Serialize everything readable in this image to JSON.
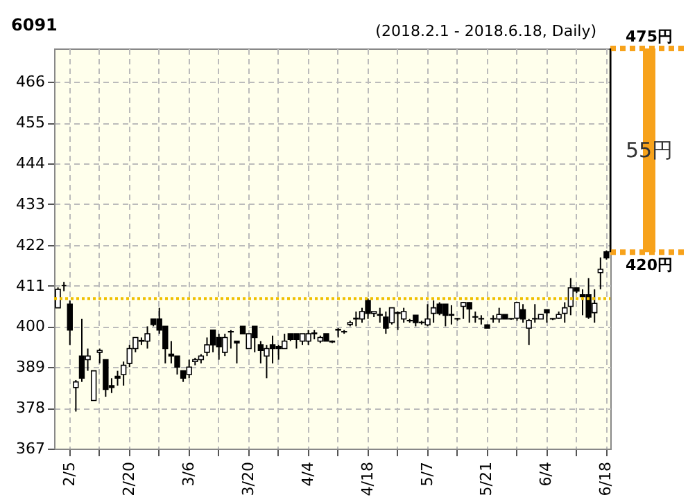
{
  "chart_data": {
    "type": "candlestick",
    "title": "6091",
    "subtitle": "(2018.2.1 - 2018.6.18, Daily)",
    "categories": [
      null,
      null,
      "2/5",
      null,
      null,
      null,
      null,
      null,
      null,
      null,
      null,
      null,
      "2/20",
      null,
      null,
      null,
      null,
      null,
      null,
      null,
      null,
      null,
      "3/6",
      null,
      null,
      null,
      null,
      null,
      null,
      null,
      null,
      null,
      "3/20",
      null,
      null,
      null,
      null,
      null,
      null,
      null,
      null,
      null,
      "4/4",
      null,
      null,
      null,
      null,
      null,
      null,
      null,
      null,
      null,
      "4/18",
      null,
      null,
      null,
      null,
      null,
      null,
      null,
      null,
      null,
      "5/7",
      null,
      null,
      null,
      null,
      null,
      null,
      null,
      null,
      null,
      "5/21",
      null,
      null,
      null,
      null,
      null,
      null,
      null,
      null,
      null,
      "6/4",
      null,
      null,
      null,
      null,
      null,
      null,
      null,
      null,
      null,
      "6/18"
    ],
    "ohlc": [
      [
        405,
        410.5,
        405,
        410
      ],
      [
        411,
        412,
        409.5,
        411
      ],
      [
        406,
        407,
        395,
        399
      ],
      [
        383.5,
        385.5,
        377,
        385
      ],
      [
        392,
        402,
        385,
        386
      ],
      [
        391,
        394,
        388,
        392
      ],
      [
        380,
        388,
        380,
        388
      ],
      [
        393,
        394,
        390,
        393.5
      ],
      [
        391,
        391,
        381,
        383
      ],
      [
        384,
        386,
        382,
        383.5
      ],
      [
        386.5,
        388,
        384,
        386
      ],
      [
        387,
        390.5,
        384,
        389.5
      ],
      [
        390,
        395,
        389,
        394
      ],
      [
        394,
        397,
        393,
        397
      ],
      [
        396,
        397,
        395,
        396.2
      ],
      [
        396,
        400,
        394,
        398
      ],
      [
        402,
        402,
        400,
        400.5
      ],
      [
        402,
        405,
        398,
        399
      ],
      [
        400,
        400,
        390,
        394
      ],
      [
        392.5,
        396,
        390,
        392
      ],
      [
        392,
        392,
        387,
        389
      ],
      [
        388,
        388,
        385,
        386
      ],
      [
        387,
        391,
        386,
        389
      ],
      [
        390.5,
        391.5,
        389.5,
        391
      ],
      [
        391,
        392.5,
        390,
        392
      ],
      [
        393,
        397,
        392,
        395
      ],
      [
        399,
        399,
        393,
        395
      ],
      [
        397,
        398,
        391,
        394.5
      ],
      [
        393,
        398,
        392,
        397
      ],
      [
        398.5,
        399,
        394,
        398.6
      ],
      [
        396,
        396,
        390,
        395.5
      ],
      [
        400,
        400,
        398,
        398
      ],
      [
        394,
        398,
        394,
        398
      ],
      [
        400,
        400,
        393,
        397
      ],
      [
        395,
        396,
        390,
        393.5
      ],
      [
        392,
        395,
        386,
        394
      ],
      [
        395,
        397.5,
        390,
        394
      ],
      [
        394.5,
        395,
        391,
        394
      ],
      [
        394,
        398,
        394,
        396
      ],
      [
        398,
        398,
        396,
        396.5
      ],
      [
        398,
        398,
        394,
        396.5
      ],
      [
        396,
        398,
        395,
        398
      ],
      [
        396,
        399,
        395,
        398
      ],
      [
        398,
        399,
        396.5,
        398.2
      ],
      [
        396,
        397.5,
        395.5,
        397
      ],
      [
        398,
        398,
        396,
        396
      ],
      [
        396,
        396.2,
        395.5,
        395.8
      ],
      [
        399,
        399.5,
        397,
        399.2
      ],
      [
        398.6,
        399,
        398,
        398.5
      ],
      [
        400.5,
        401.5,
        400,
        401
      ],
      [
        402,
        404,
        400,
        402.2
      ],
      [
        402,
        405,
        401,
        404
      ],
      [
        407,
        407.5,
        402,
        403.5
      ],
      [
        403.5,
        404,
        402.5,
        404
      ],
      [
        403,
        405,
        401,
        403.2
      ],
      [
        402.5,
        404,
        398,
        399.5
      ],
      [
        401,
        405,
        400.5,
        405
      ],
      [
        403.5,
        404,
        399,
        403.7
      ],
      [
        402,
        405,
        401,
        404
      ],
      [
        401.5,
        402,
        401,
        401.6
      ],
      [
        403,
        403,
        400,
        401
      ],
      [
        401,
        401.5,
        400.5,
        401.1
      ],
      [
        400.4,
        406,
        400,
        402
      ],
      [
        403.5,
        407,
        401,
        405
      ],
      [
        406,
        406.5,
        403,
        403.5
      ],
      [
        406,
        406,
        400,
        403
      ],
      [
        403,
        405.7,
        400.5,
        403.2
      ],
      [
        402,
        402.3,
        401.5,
        402.1
      ],
      [
        405.4,
        406.5,
        402,
        406.4
      ],
      [
        406.4,
        406.5,
        401,
        404.7
      ],
      [
        402.5,
        404,
        401,
        402.6
      ],
      [
        402,
        403,
        400.5,
        402.1
      ],
      [
        400.4,
        400.5,
        399.5,
        399.5
      ],
      [
        402,
        403,
        401,
        402.1
      ],
      [
        402,
        405,
        401,
        403.2
      ],
      [
        403.2,
        403.2,
        402,
        402
      ],
      [
        402,
        402.2,
        401.8,
        402.1
      ],
      [
        402.2,
        406.4,
        401.5,
        406.4
      ],
      [
        404.5,
        406,
        401,
        402
      ],
      [
        399.5,
        402,
        395,
        401.6
      ],
      [
        402,
        406,
        401,
        402.1
      ],
      [
        402,
        403.2,
        402,
        403.2
      ],
      [
        404.5,
        404.5,
        401,
        403.7
      ],
      [
        402,
        402.2,
        401.7,
        402.1
      ],
      [
        402.2,
        404,
        402,
        403.2
      ],
      [
        403.5,
        406.5,
        401,
        405
      ],
      [
        405.4,
        413,
        403,
        410.4
      ],
      [
        410.4,
        410.5,
        409,
        409.5
      ],
      [
        408.5,
        410,
        403,
        408
      ],
      [
        408.5,
        413,
        402,
        402.5
      ],
      [
        403.7,
        410,
        401,
        406.2
      ],
      [
        414.5,
        418.6,
        410,
        415.4
      ],
      [
        420.1,
        420.5,
        418,
        418.5
      ]
    ],
    "ylim": [
      367,
      475
    ],
    "yticks": [
      367,
      378,
      389,
      400,
      411,
      422,
      433,
      444,
      455,
      466
    ],
    "grid": true,
    "ref_lines": [
      {
        "axis": "y",
        "value": 407.5,
        "color": "#f0c000",
        "line_style": "dotted"
      },
      {
        "axis": "y",
        "value": 475,
        "label": "475円",
        "color": "#f7a21b",
        "line_style": "dotted"
      },
      {
        "axis": "y",
        "value": 420,
        "label": "420円",
        "color": "#f7a21b",
        "line_style": "dotted"
      }
    ],
    "annotations": [
      "55円"
    ]
  }
}
